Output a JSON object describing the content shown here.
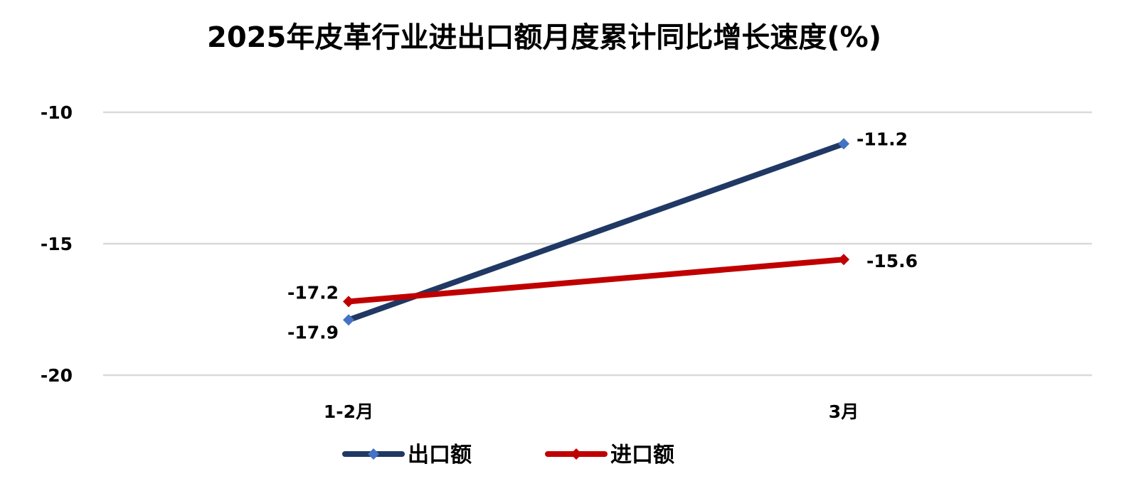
{
  "chart_data": {
    "type": "line",
    "title": "2025年皮革行业进出口额月度累计同比增长速度(%)",
    "categories": [
      "1-2月",
      "3月"
    ],
    "series": [
      {
        "name": "出口额",
        "values": [
          -17.9,
          -11.2
        ],
        "color": "#203864",
        "marker_color": "#4472C4",
        "marker": "diamond"
      },
      {
        "name": "进口额",
        "values": [
          -17.2,
          -15.6
        ],
        "color": "#C00000",
        "marker_color": "#C00000",
        "marker": "diamond"
      }
    ],
    "yticks": [
      "-10",
      "-15",
      "-20"
    ],
    "ylim": [
      -20,
      -10
    ],
    "grid": true,
    "legend_position": "bottom"
  }
}
